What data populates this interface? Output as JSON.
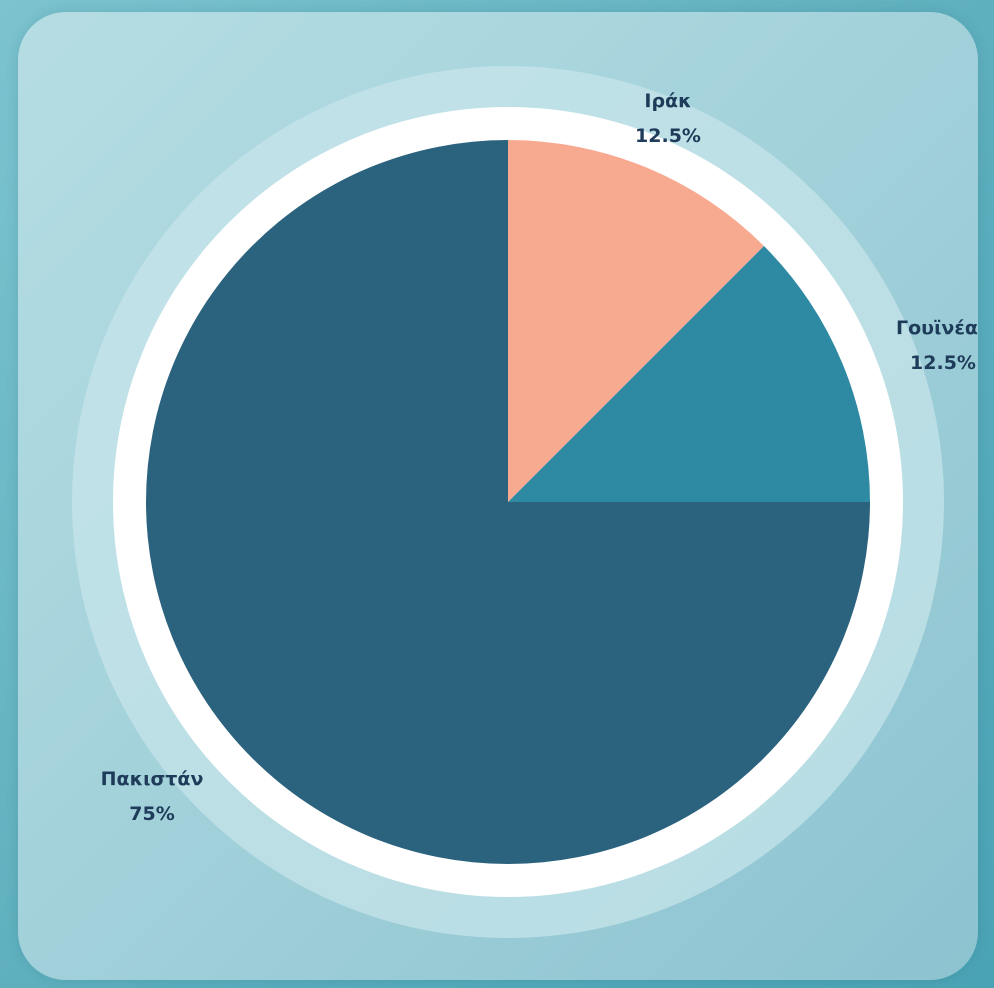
{
  "chart_data": {
    "type": "pie",
    "slices": [
      {
        "label": "Ιράκ",
        "percent_label": "12.5%",
        "value": 12.5,
        "color": "#f8aa91"
      },
      {
        "label": "Γουϊνέα",
        "percent_label": "12.5%",
        "value": 12.5,
        "color": "#2e8aa2"
      },
      {
        "label": "Πακιστάν",
        "percent_label": "75%",
        "value": 75,
        "color": "#2b627d"
      }
    ],
    "start_angle_deg": 0,
    "direction": "clockwise",
    "ring_color": "#ffffff",
    "halo_color": "#cbe7ec"
  }
}
